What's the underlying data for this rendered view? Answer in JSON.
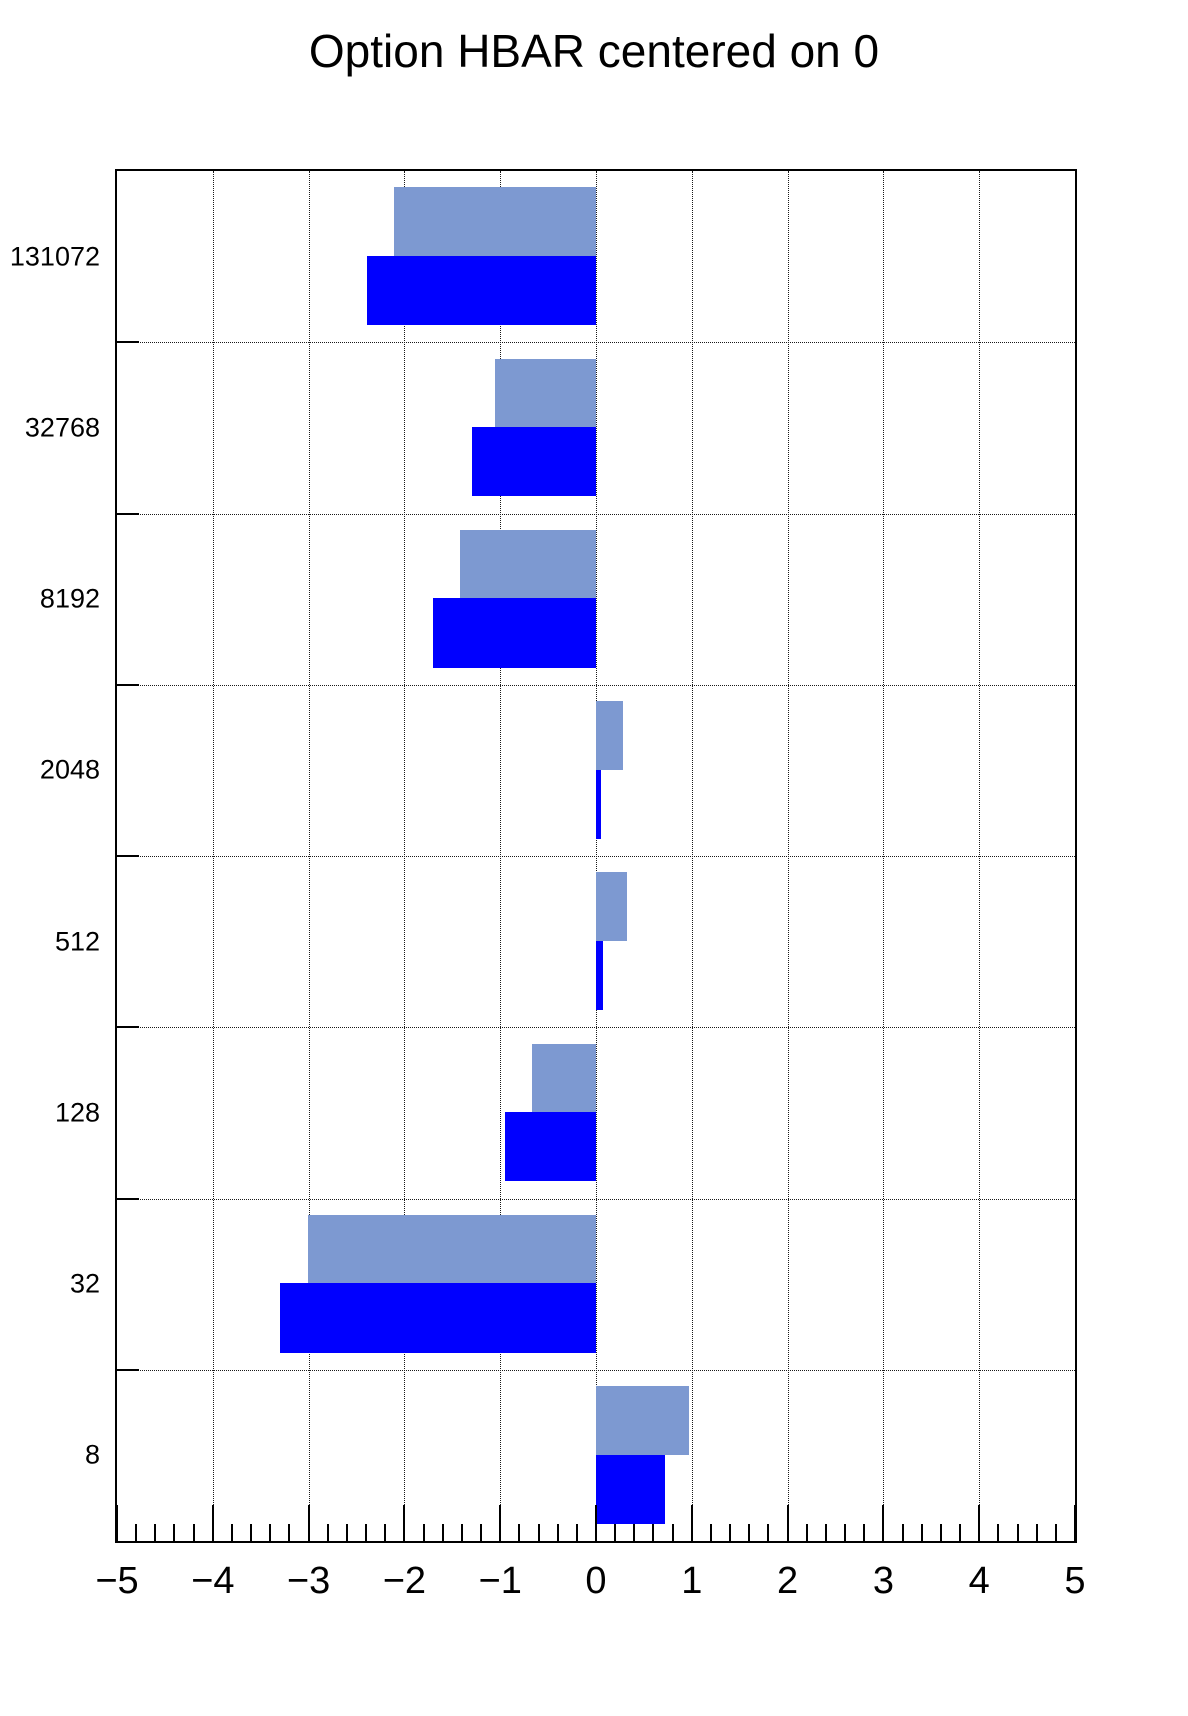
{
  "page": {
    "background": "#ffffff"
  },
  "chart_data": {
    "type": "bar",
    "orientation": "horizontal",
    "title": "Option HBAR centered on 0",
    "categories": [
      "131072",
      "32768",
      "8192",
      "2048",
      "512",
      "128",
      "32",
      "8"
    ],
    "series": [
      {
        "name": "upper-light-blue",
        "color": "#7D99D1",
        "values": [
          -2.11,
          -1.05,
          -1.42,
          0.28,
          0.32,
          -0.67,
          -3.01,
          0.97
        ]
      },
      {
        "name": "lower-blue",
        "color": "#0000FF",
        "values": [
          -2.39,
          -1.29,
          -1.7,
          0.05,
          0.07,
          -0.95,
          -3.3,
          0.72
        ]
      }
    ],
    "xlim": [
      -5,
      5
    ],
    "x_ticks": [
      -5,
      -4,
      -3,
      -2,
      -1,
      0,
      1,
      2,
      3,
      4,
      5
    ],
    "x_tick_labels": [
      "−5",
      "−4",
      "−3",
      "−2",
      "−1",
      "0",
      "1",
      "2",
      "3",
      "4",
      "5"
    ],
    "x_minor_step": 0.2,
    "grid": "dotted",
    "baseline": 0,
    "axis_color": "#000000",
    "frame_color": "#000000"
  }
}
